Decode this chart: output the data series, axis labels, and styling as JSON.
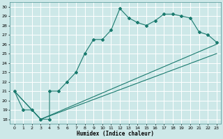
{
  "title": "",
  "xlabel": "Humidex (Indice chaleur)",
  "bg_color": "#cde8e8",
  "grid_color": "#ffffff",
  "line_color": "#1a7a6e",
  "xlim": [
    -0.5,
    23.5
  ],
  "ylim": [
    17.5,
    30.5
  ],
  "xticks": [
    0,
    1,
    2,
    3,
    4,
    5,
    6,
    7,
    8,
    9,
    10,
    11,
    12,
    13,
    14,
    15,
    16,
    17,
    18,
    19,
    20,
    21,
    22,
    23
  ],
  "yticks": [
    18,
    19,
    20,
    21,
    22,
    23,
    24,
    25,
    26,
    27,
    28,
    29,
    30
  ],
  "line1_x": [
    0,
    1,
    2,
    3,
    4,
    4,
    5,
    6,
    7,
    8,
    9,
    10,
    11,
    12,
    13,
    14,
    15,
    16,
    17,
    18,
    19,
    20,
    21,
    22,
    23
  ],
  "line1_y": [
    21,
    19,
    19,
    18,
    18,
    21,
    21,
    22,
    23,
    25,
    26.5,
    26.5,
    27.5,
    29.8,
    28.8,
    28.3,
    28,
    28.5,
    29.2,
    29.2,
    29.0,
    28.8,
    27.3,
    27,
    26.2
  ],
  "line2_x": [
    0,
    3,
    23
  ],
  "line2_y": [
    21,
    18,
    26
  ],
  "line3_x": [
    0,
    3,
    23
  ],
  "line3_y": [
    21,
    18,
    25
  ]
}
